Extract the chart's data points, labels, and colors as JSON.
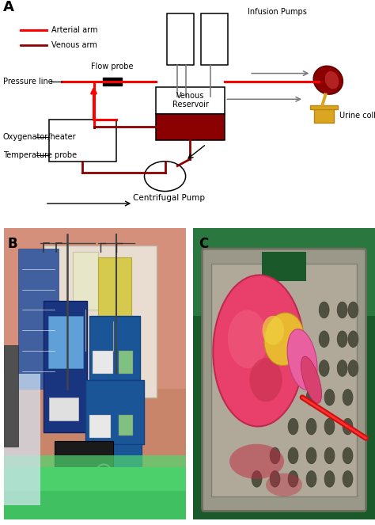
{
  "panel_A_label": "A",
  "panel_B_label": "B",
  "panel_C_label": "C",
  "arterial_color": "#FF0000",
  "venous_color": "#8B0000",
  "legend_arterial": "Arterial arm",
  "legend_venous": "Venous arm",
  "label_flow_probe": "Flow probe",
  "label_pressure_line": "Pressure line",
  "label_infusion_pumps": "Infusion Pumps",
  "label_venous_reservoir": "Venous\nReservoir",
  "label_oxygenator": "Oxygenator/heater",
  "label_temp_probe": "Temperature probe",
  "label_centrifugal_pump": "Centrifugal Pump",
  "label_urine_collection": "Urine collection",
  "background_color": "#FFFFFF",
  "lw_art": 2.2,
  "lw_ven": 2.0,
  "panel_B_bg": "#D4A882",
  "panel_B_wall": "#C8956A",
  "panel_B_green": "#5DC85A",
  "panel_B_blue_device": "#2B4FA8",
  "panel_C_bg": "#2A7A3A",
  "panel_C_tray": "#8A9080",
  "panel_C_kidney": "#E8406A",
  "panel_C_fat": "#E8C040",
  "panel_C_tube": "#CC1010"
}
